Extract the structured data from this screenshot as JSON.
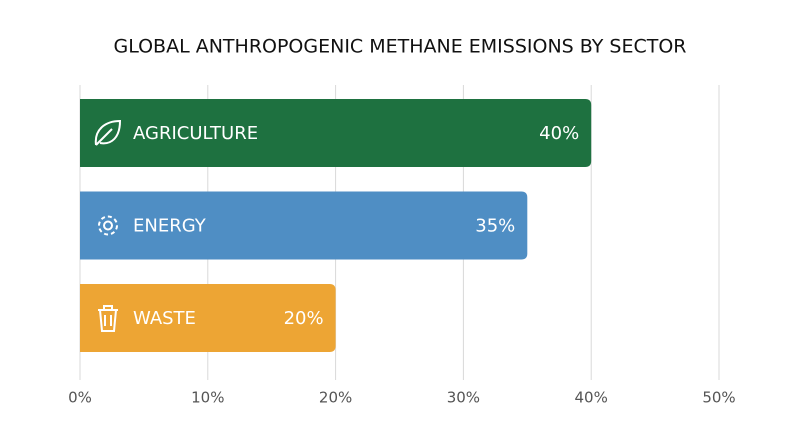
{
  "chart_data": {
    "type": "bar",
    "orientation": "horizontal",
    "title": "GLOBAL ANTHROPOGENIC METHANE EMISSIONS BY SECTOR",
    "categories": [
      "AGRICULTURE",
      "ENERGY",
      "WASTE"
    ],
    "values": [
      40,
      35,
      20
    ],
    "value_labels": [
      "40%",
      "35%",
      "20%"
    ],
    "colors": [
      "#1e7140",
      "#4f8ec4",
      "#eda534"
    ],
    "xlim": [
      0,
      50
    ],
    "xticks": [
      {
        "value": 0,
        "label": "0%"
      },
      {
        "value": 10,
        "label": "10%"
      },
      {
        "value": 20,
        "label": "20%"
      },
      {
        "value": 30,
        "label": "30%"
      },
      {
        "value": 40,
        "label": "40%"
      },
      {
        "value": 50,
        "label": "50%"
      }
    ],
    "grid": true
  }
}
